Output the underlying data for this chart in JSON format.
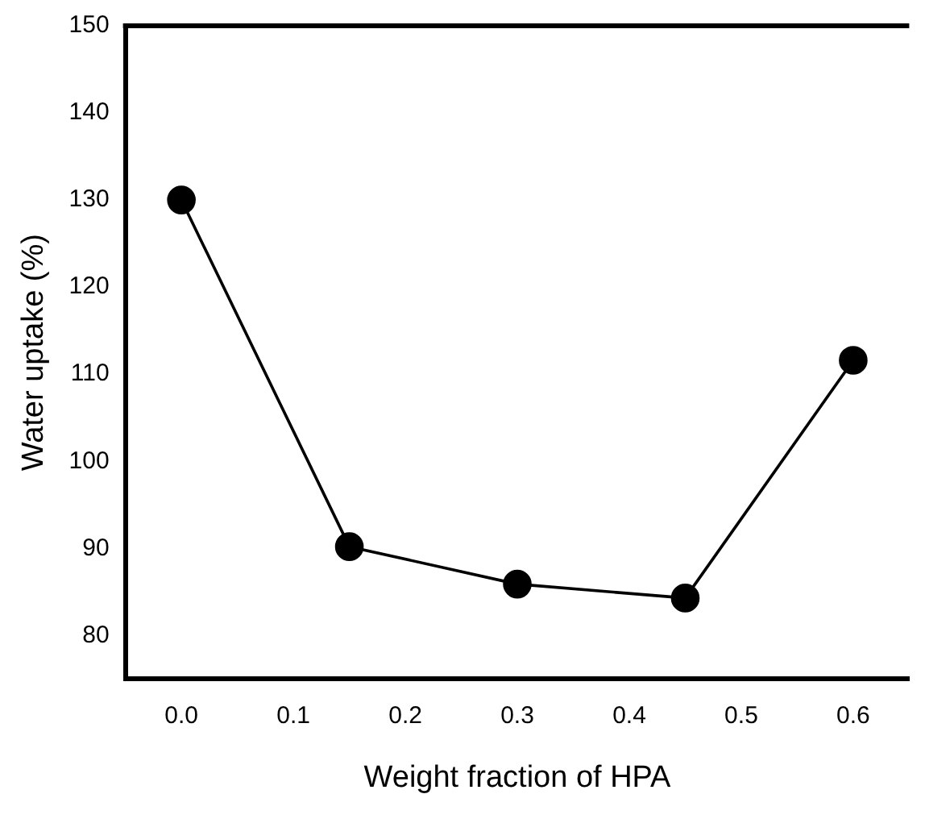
{
  "chart_data": {
    "type": "line",
    "xlabel": "Weight fraction of HPA",
    "ylabel": "Water uptake (%)",
    "x": [
      0.0,
      0.15,
      0.3,
      0.45,
      0.6
    ],
    "series": [
      {
        "color": "#000000",
        "values": [
          130,
          90.2,
          85.9,
          84.3,
          111.6
        ]
      }
    ],
    "xlim": [
      -0.05,
      0.65
    ],
    "xticks": [
      {
        "value": 0.0,
        "label": "0.0"
      },
      {
        "value": 0.1,
        "label": "0.1"
      },
      {
        "value": 0.2,
        "label": "0.2"
      },
      {
        "value": 0.3,
        "label": "0.3"
      },
      {
        "value": 0.4,
        "label": "0.4"
      },
      {
        "value": 0.5,
        "label": "0.5"
      },
      {
        "value": 0.6,
        "label": "0.6"
      }
    ],
    "ylim": [
      75,
      150
    ],
    "yticks": [
      80,
      90,
      100,
      110,
      120,
      130,
      140,
      150
    ],
    "marker": "circle",
    "line_style": "solid",
    "grid": false,
    "legend": false
  }
}
